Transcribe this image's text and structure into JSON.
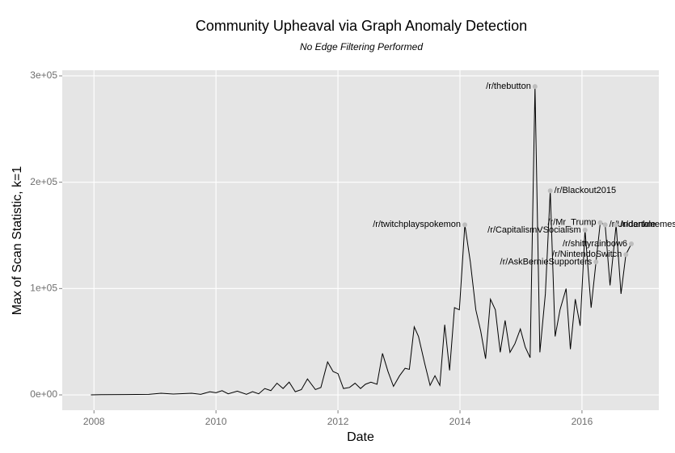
{
  "chart_data": {
    "type": "line",
    "title": "Community Upheaval via Graph Anomaly Detection",
    "subtitle": "No Edge Filtering Performed",
    "x_label": "Date",
    "y_label": "Max of Scan Statistic, k=1",
    "xlim": [
      2007.48,
      2017.26
    ],
    "xticks": [
      2008,
      2010,
      2012,
      2014,
      2016
    ],
    "ylim": [
      -14400,
      305300
    ],
    "yticks": [
      {
        "value": 0,
        "label": "0e+00"
      },
      {
        "value": 100000,
        "label": "1e+05"
      },
      {
        "value": 200000,
        "label": "2e+05"
      },
      {
        "value": 300000,
        "label": "3e+05"
      }
    ],
    "grid": true,
    "series": [
      {
        "color": "#000000",
        "x": [
          2007.95,
          2008.12,
          2008.5,
          2008.9,
          2009.1,
          2009.3,
          2009.6,
          2009.75,
          2009.9,
          2010.0,
          2010.1,
          2010.2,
          2010.35,
          2010.5,
          2010.6,
          2010.7,
          2010.8,
          2010.9,
          2011.0,
          2011.1,
          2011.2,
          2011.3,
          2011.4,
          2011.5,
          2011.63,
          2011.72,
          2011.83,
          2011.92,
          2012.0,
          2012.09,
          2012.19,
          2012.28,
          2012.37,
          2012.45,
          2012.54,
          2012.64,
          2012.73,
          2012.82,
          2012.91,
          2013.01,
          2013.1,
          2013.17,
          2013.25,
          2013.32,
          2013.42,
          2013.51,
          2013.59,
          2013.67,
          2013.75,
          2013.83,
          2013.91,
          2013.99,
          2014.08,
          2014.17,
          2014.26,
          2014.34,
          2014.42,
          2014.5,
          2014.58,
          2014.66,
          2014.74,
          2014.82,
          2014.9,
          2014.99,
          2015.07,
          2015.15,
          2015.23,
          2015.31,
          2015.4,
          2015.48,
          2015.56,
          2015.64,
          2015.74,
          2015.81,
          2015.89,
          2015.97,
          2016.05,
          2016.15,
          2016.23,
          2016.3,
          2016.38,
          2016.46,
          2016.56,
          2016.64,
          2016.72,
          2016.81
        ],
        "values": [
          0,
          200,
          300,
          500,
          1500,
          800,
          1500,
          500,
          3000,
          2000,
          4000,
          1000,
          3500,
          500,
          3000,
          1000,
          6000,
          4000,
          11000,
          6000,
          12000,
          3000,
          5000,
          15000,
          5000,
          7000,
          31000,
          22000,
          20000,
          6000,
          7000,
          11000,
          6000,
          10000,
          12000,
          10000,
          39000,
          22000,
          8000,
          18000,
          25000,
          24000,
          64000,
          55000,
          30000,
          9000,
          18000,
          9000,
          66000,
          23000,
          82000,
          80000,
          160000,
          125000,
          80000,
          60000,
          34000,
          90000,
          80000,
          40000,
          70000,
          40000,
          48000,
          62000,
          45000,
          35000,
          290000,
          40000,
          95000,
          192000,
          55000,
          80000,
          100000,
          43000,
          90000,
          65000,
          155000,
          82000,
          125000,
          162000,
          160000,
          103000,
          160000,
          95000,
          132000,
          142000
        ]
      }
    ],
    "annotations": [
      {
        "text": "/r/thebutton",
        "x": 2015.23,
        "y": 290000,
        "anchor": "end"
      },
      {
        "text": "/r/Blackout2015",
        "x": 2015.48,
        "y": 192000,
        "anchor": "start"
      },
      {
        "text": "/r/twitchplayspokemon",
        "x": 2014.08,
        "y": 160000,
        "anchor": "end"
      },
      {
        "text": "/r/CapitalismVSocialism",
        "x": 2016.05,
        "y": 155000,
        "anchor": "end"
      },
      {
        "text": "/r/Mr_Trump",
        "x": 2016.3,
        "y": 162000,
        "anchor": "end"
      },
      {
        "text": "/r/Undertale",
        "x": 2016.38,
        "y": 160000,
        "anchor": "start"
      },
      {
        "text": "/r/dankmemes",
        "x": 2016.56,
        "y": 160000,
        "anchor": "start"
      },
      {
        "text": "/r/shittyrainbow6",
        "x": 2016.81,
        "y": 142000,
        "anchor": "end"
      },
      {
        "text": "/r/NintendoSwitch",
        "x": 2016.72,
        "y": 132000,
        "anchor": "end"
      },
      {
        "text": "/r/AskBernieSupporters",
        "x": 2016.23,
        "y": 125000,
        "anchor": "end"
      }
    ]
  }
}
